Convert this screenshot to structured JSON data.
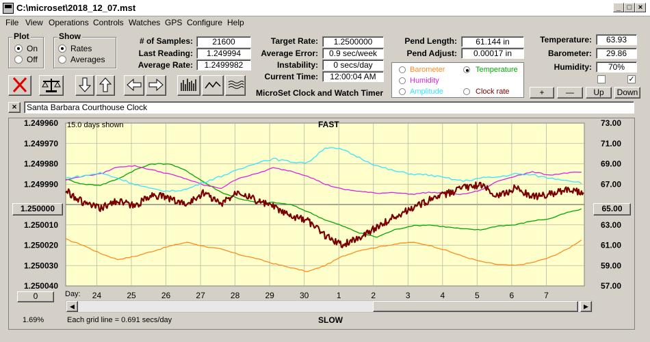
{
  "window": {
    "title": "C:\\microset\\2018_12_07.mst"
  },
  "menu": [
    "File",
    "View",
    "Operations",
    "Controls",
    "Watches",
    "GPS",
    "Configure",
    "Help"
  ],
  "plot_group": {
    "title": "Plot",
    "on_label": "On",
    "off_label": "Off",
    "selected": "On"
  },
  "show_group": {
    "title": "Show",
    "rates_label": "Rates",
    "averages_label": "Averages",
    "selected": "Rates"
  },
  "stats": {
    "samples_label": "# of Samples:",
    "samples_value": "21600",
    "last_reading_label": "Last Reading:",
    "last_reading_value": "1.249994",
    "average_rate_label": "Average Rate:",
    "average_rate_value": "1.2499982"
  },
  "target": {
    "target_rate_label": "Target Rate:",
    "target_rate_value": "1.2500000",
    "average_error_label": "Average Error:",
    "average_error_value": "0.9 sec/week",
    "instability_label": "Instability:",
    "instability_value": "0 secs/day",
    "current_time_label": "Current Time:",
    "current_time_value": "12:00:04 AM"
  },
  "app_name": "MicroSet Clock and Watch Timer",
  "pendulum": {
    "length_label": "Pend Length:",
    "length_value": "61.144 in",
    "adjust_label": "Pend Adjust:",
    "adjust_value": "0.00017 in"
  },
  "legend": {
    "barometer": "Barometer",
    "temperature": "Temperature",
    "humidity": "Humidity",
    "amplitude": "Amplitude",
    "clock_rate": "Clock rate",
    "selected": "Temperature"
  },
  "environment": {
    "temperature_label": "Temperature:",
    "temperature_value": "63.93",
    "barometer_label": "Barometer:",
    "barometer_value": "29.86",
    "humidity_label": "Humidity:",
    "humidity_value": "70%",
    "checkbox1": false,
    "checkbox2": true
  },
  "scale_buttons": {
    "plus": "+",
    "minus": "—",
    "up": "Up",
    "down": "Down"
  },
  "clock_name": "Santa Barbara Courthouse Clock",
  "close_x": "×",
  "chart_data": {
    "type": "line",
    "top_label": "FAST",
    "bottom_label": "SLOW",
    "days_shown": "15.0 days shown",
    "grid_note": "Each grid line = 0.691 secs/day",
    "percent": "1.69%",
    "day_label": "Day:",
    "scroll_value": "0",
    "left_axis_ticks": [
      "1.249960",
      "1.249970",
      "1.249980",
      "1.249990",
      "1.250000",
      "1.250010",
      "1.250020",
      "1.250030",
      "1.250040"
    ],
    "right_axis_ticks": [
      "73.00",
      "71.00",
      "69.00",
      "67.00",
      "65.00",
      "63.00",
      "61.00",
      "59.00",
      "57.00"
    ],
    "x_ticks": [
      "24",
      "25",
      "26",
      "27",
      "28",
      "29",
      "30",
      "1",
      "2",
      "3",
      "4",
      "5",
      "6",
      "7"
    ],
    "ylim_left": [
      1.24996,
      1.25004
    ],
    "ylim_right": [
      57,
      73
    ],
    "x_range": [
      0,
      15
    ],
    "grid": true,
    "series": [
      {
        "color": "#ff8c1a",
        "axis": "right",
        "x": [
          0,
          0.5,
          1,
          1.5,
          2,
          2.5,
          3,
          3.5,
          4,
          4.5,
          5,
          5.5,
          6,
          6.5,
          7,
          7.5,
          8,
          8.5,
          9,
          9.5,
          10,
          10.5,
          11,
          11.5,
          12,
          12.5,
          13,
          13.5,
          14,
          14.5,
          15
        ],
        "y": [
          61.6,
          61.0,
          60.2,
          59.6,
          59.9,
          60.4,
          60.9,
          61.3,
          60.9,
          60.6,
          60.1,
          59.7,
          59.2,
          58.8,
          58.4,
          59.0,
          59.9,
          60.5,
          60.8,
          61.1,
          61.3,
          61.0,
          60.5,
          59.9,
          59.4,
          59.1,
          59.0,
          59.3,
          59.8,
          60.6,
          61.7
        ]
      },
      {
        "color": "#00a800",
        "axis": "right",
        "x": [
          0,
          0.5,
          1,
          1.5,
          2,
          2.5,
          3,
          3.5,
          4,
          4.5,
          5,
          5.5,
          6,
          6.5,
          7,
          7.5,
          8,
          8.5,
          9,
          9.5,
          10,
          10.5,
          11,
          11.5,
          12,
          12.5,
          13,
          13.5,
          14,
          14.5,
          15
        ],
        "y": [
          67.5,
          67.0,
          66.9,
          67.5,
          68.4,
          69.0,
          69.0,
          68.3,
          67.2,
          66.2,
          65.6,
          65.2,
          65.2,
          65.0,
          64.3,
          63.5,
          62.9,
          62.2,
          61.8,
          62.5,
          62.9,
          63.0,
          62.8,
          62.6,
          62.5,
          62.9,
          63.0,
          63.4,
          63.6,
          64.2,
          64.6
        ]
      },
      {
        "color": "#e020e0",
        "axis": "right",
        "x": [
          0,
          0.5,
          1,
          1.5,
          2,
          2.5,
          3,
          3.5,
          4,
          4.5,
          5,
          5.5,
          6,
          6.5,
          7,
          7.5,
          8,
          8.5,
          9,
          9.5,
          10,
          10.5,
          11,
          11.5,
          12,
          12.5,
          13,
          13.5,
          14,
          14.5,
          15
        ],
        "y": [
          67.4,
          67.8,
          68.0,
          68.7,
          68.8,
          68.4,
          68.0,
          67.5,
          66.9,
          66.6,
          67.6,
          68.0,
          68.6,
          68.3,
          67.8,
          67.0,
          66.5,
          66.3,
          66.1,
          66.2,
          66.0,
          66.2,
          66.1,
          66.0,
          66.4,
          67.3,
          67.8,
          68.2,
          67.9,
          68.1,
          68.2
        ]
      },
      {
        "color": "#33e6ff",
        "axis": "right",
        "x": [
          0,
          0.5,
          1,
          1.5,
          2,
          2.5,
          3,
          3.5,
          4,
          4.5,
          5,
          5.5,
          6,
          6.5,
          7,
          7.5,
          8,
          8.5,
          9,
          9.5,
          10,
          10.5,
          11,
          11.5,
          12,
          12.5,
          13,
          13.5,
          14,
          14.5,
          15
        ],
        "y": [
          67.6,
          67.8,
          68.1,
          67.6,
          67.0,
          66.5,
          66.3,
          66.5,
          67.2,
          67.8,
          68.4,
          69.1,
          69.5,
          69.2,
          69.1,
          70.6,
          70.4,
          69.6,
          68.8,
          68.3,
          68.0,
          67.9,
          67.6,
          67.3,
          67.6,
          67.7,
          68.0,
          67.9,
          67.6,
          67.4,
          67.1
        ]
      },
      {
        "color": "#7a0000",
        "axis": "left",
        "x": [
          0,
          0.5,
          1,
          1.5,
          2,
          2.5,
          3,
          3.5,
          4,
          4.5,
          5,
          5.5,
          6,
          6.5,
          7,
          7.5,
          8,
          8.5,
          9,
          9.5,
          10,
          10.5,
          11,
          11.5,
          12,
          12.5,
          13,
          13.5,
          14,
          14.5,
          15
        ],
        "y": [
          1.249993,
          1.249999,
          1.250002,
          1.249998,
          1.250001,
          1.249995,
          1.249997,
          1.25,
          1.249994,
          1.25,
          1.249993,
          1.249998,
          1.250001,
          1.250006,
          1.250008,
          1.250015,
          1.25002,
          1.250016,
          1.250011,
          1.250006,
          1.250002,
          1.249998,
          1.249995,
          1.249992,
          1.24999,
          1.249996,
          1.249992,
          1.249996,
          1.249995,
          1.249993,
          1.249994
        ]
      }
    ],
    "center_left_label": "1.250000",
    "center_right_label": "65.00"
  }
}
